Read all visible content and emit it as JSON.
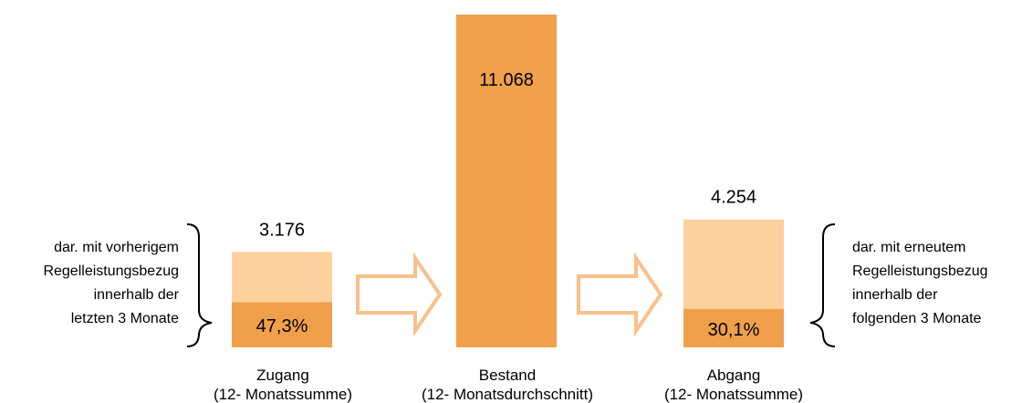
{
  "chart_data": {
    "type": "bar",
    "bars": [
      {
        "category_line1": "Zugang",
        "category_line2": "(12- Monatssumme)",
        "total": 3176,
        "total_label": "3.176",
        "share": 0.473,
        "share_label": "47,3%"
      },
      {
        "category_line1": "Bestand",
        "category_line2": "(12- Monatsdurchschnitt)",
        "total": 11068,
        "total_label": "11.068"
      },
      {
        "category_line1": "Abgang",
        "category_line2": "(12- Monatssumme)",
        "total": 4254,
        "total_label": "4.254",
        "share": 0.301,
        "share_label": "30,1%"
      }
    ],
    "left_annotation": [
      "dar. mit vorherigem",
      "Regelleistungsbezug",
      "innerhalb der",
      "letzten 3 Monate"
    ],
    "right_annotation": [
      "dar. mit erneutem",
      "Regelleistungsbezug",
      "innerhalb der",
      "folgenden 3 Monate"
    ],
    "colors": {
      "bar_dark": "#F0A04B",
      "bar_light": "#FDD19E",
      "arrow_outline": "#F8C08A"
    }
  }
}
